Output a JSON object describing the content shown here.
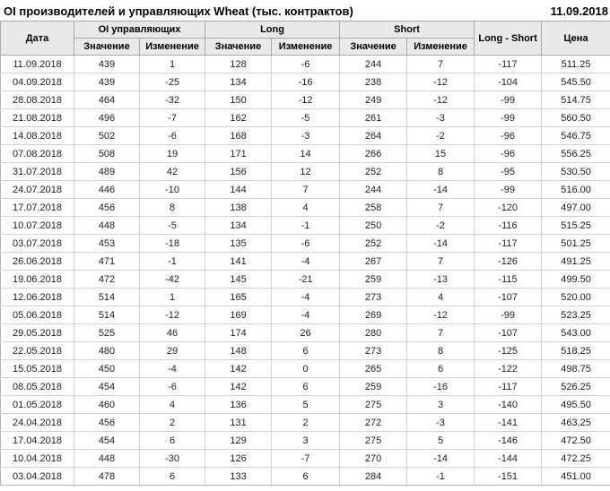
{
  "header": {
    "title": "OI производителей и управляющих Wheat (тыс. контрактов)",
    "date": "11.09.2018"
  },
  "colors": {
    "positive": "#1a941a",
    "negative": "#c23434"
  },
  "table": {
    "headers": {
      "date": "Дата",
      "oi_group": "OI управляющих",
      "long_group": "Long",
      "short_group": "Short",
      "long_short": "Long - Short",
      "price": "Цена"
    },
    "subheaders": [
      "Значение",
      "Изменение"
    ],
    "rows": [
      [
        "11.09.2018",
        "439",
        "1",
        "128",
        "-6",
        "244",
        "7",
        "-117",
        "511.25"
      ],
      [
        "04.09.2018",
        "439",
        "-25",
        "134",
        "-16",
        "238",
        "-12",
        "-104",
        "545.50"
      ],
      [
        "28.08.2018",
        "464",
        "-32",
        "150",
        "-12",
        "249",
        "-12",
        "-99",
        "514.75"
      ],
      [
        "21.08.2018",
        "496",
        "-7",
        "162",
        "-5",
        "261",
        "-3",
        "-99",
        "560.50"
      ],
      [
        "14.08.2018",
        "502",
        "-6",
        "168",
        "-3",
        "264",
        "-2",
        "-96",
        "546.75"
      ],
      [
        "07.08.2018",
        "508",
        "19",
        "171",
        "14",
        "266",
        "15",
        "-96",
        "556.25"
      ],
      [
        "31.07.2018",
        "489",
        "42",
        "156",
        "12",
        "252",
        "8",
        "-95",
        "530.50"
      ],
      [
        "24.07.2018",
        "446",
        "-10",
        "144",
        "7",
        "244",
        "-14",
        "-99",
        "516.00"
      ],
      [
        "17.07.2018",
        "456",
        "8",
        "138",
        "4",
        "258",
        "7",
        "-120",
        "497.00"
      ],
      [
        "10.07.2018",
        "448",
        "-5",
        "134",
        "-1",
        "250",
        "-2",
        "-116",
        "515.25"
      ],
      [
        "03.07.2018",
        "453",
        "-18",
        "135",
        "-6",
        "252",
        "-14",
        "-117",
        "501.25"
      ],
      [
        "26.06.2018",
        "471",
        "-1",
        "141",
        "-4",
        "267",
        "7",
        "-126",
        "491.25"
      ],
      [
        "19.06.2018",
        "472",
        "-42",
        "145",
        "-21",
        "259",
        "-13",
        "-115",
        "499.50"
      ],
      [
        "12.06.2018",
        "514",
        "1",
        "165",
        "-4",
        "273",
        "4",
        "-107",
        "520.00"
      ],
      [
        "05.06.2018",
        "514",
        "-12",
        "169",
        "-4",
        "269",
        "-12",
        "-99",
        "523.25"
      ],
      [
        "29.05.2018",
        "525",
        "46",
        "174",
        "26",
        "280",
        "7",
        "-107",
        "543.00"
      ],
      [
        "22.05.2018",
        "480",
        "29",
        "148",
        "6",
        "273",
        "8",
        "-125",
        "518.25"
      ],
      [
        "15.05.2018",
        "450",
        "-4",
        "142",
        "0",
        "265",
        "6",
        "-122",
        "498.75"
      ],
      [
        "08.05.2018",
        "454",
        "-6",
        "142",
        "6",
        "259",
        "-16",
        "-117",
        "526.25"
      ],
      [
        "01.05.2018",
        "460",
        "4",
        "136",
        "5",
        "275",
        "3",
        "-140",
        "495.50"
      ],
      [
        "24.04.2018",
        "456",
        "2",
        "131",
        "2",
        "272",
        "-3",
        "-141",
        "463.25"
      ],
      [
        "17.04.2018",
        "454",
        "6",
        "129",
        "3",
        "275",
        "5",
        "-146",
        "472.50"
      ],
      [
        "10.04.2018",
        "448",
        "-30",
        "126",
        "-7",
        "270",
        "-14",
        "-144",
        "472.25"
      ],
      [
        "03.04.2018",
        "478",
        "6",
        "133",
        "6",
        "284",
        "-1",
        "-151",
        "451.00"
      ]
    ],
    "change_column_indexes": [
      2,
      4,
      6
    ],
    "cell_names": [
      "date-cell",
      "oi-value-cell",
      "oi-change-cell",
      "long-value-cell",
      "long-change-cell",
      "short-value-cell",
      "short-change-cell",
      "long-short-cell",
      "price-cell"
    ]
  }
}
